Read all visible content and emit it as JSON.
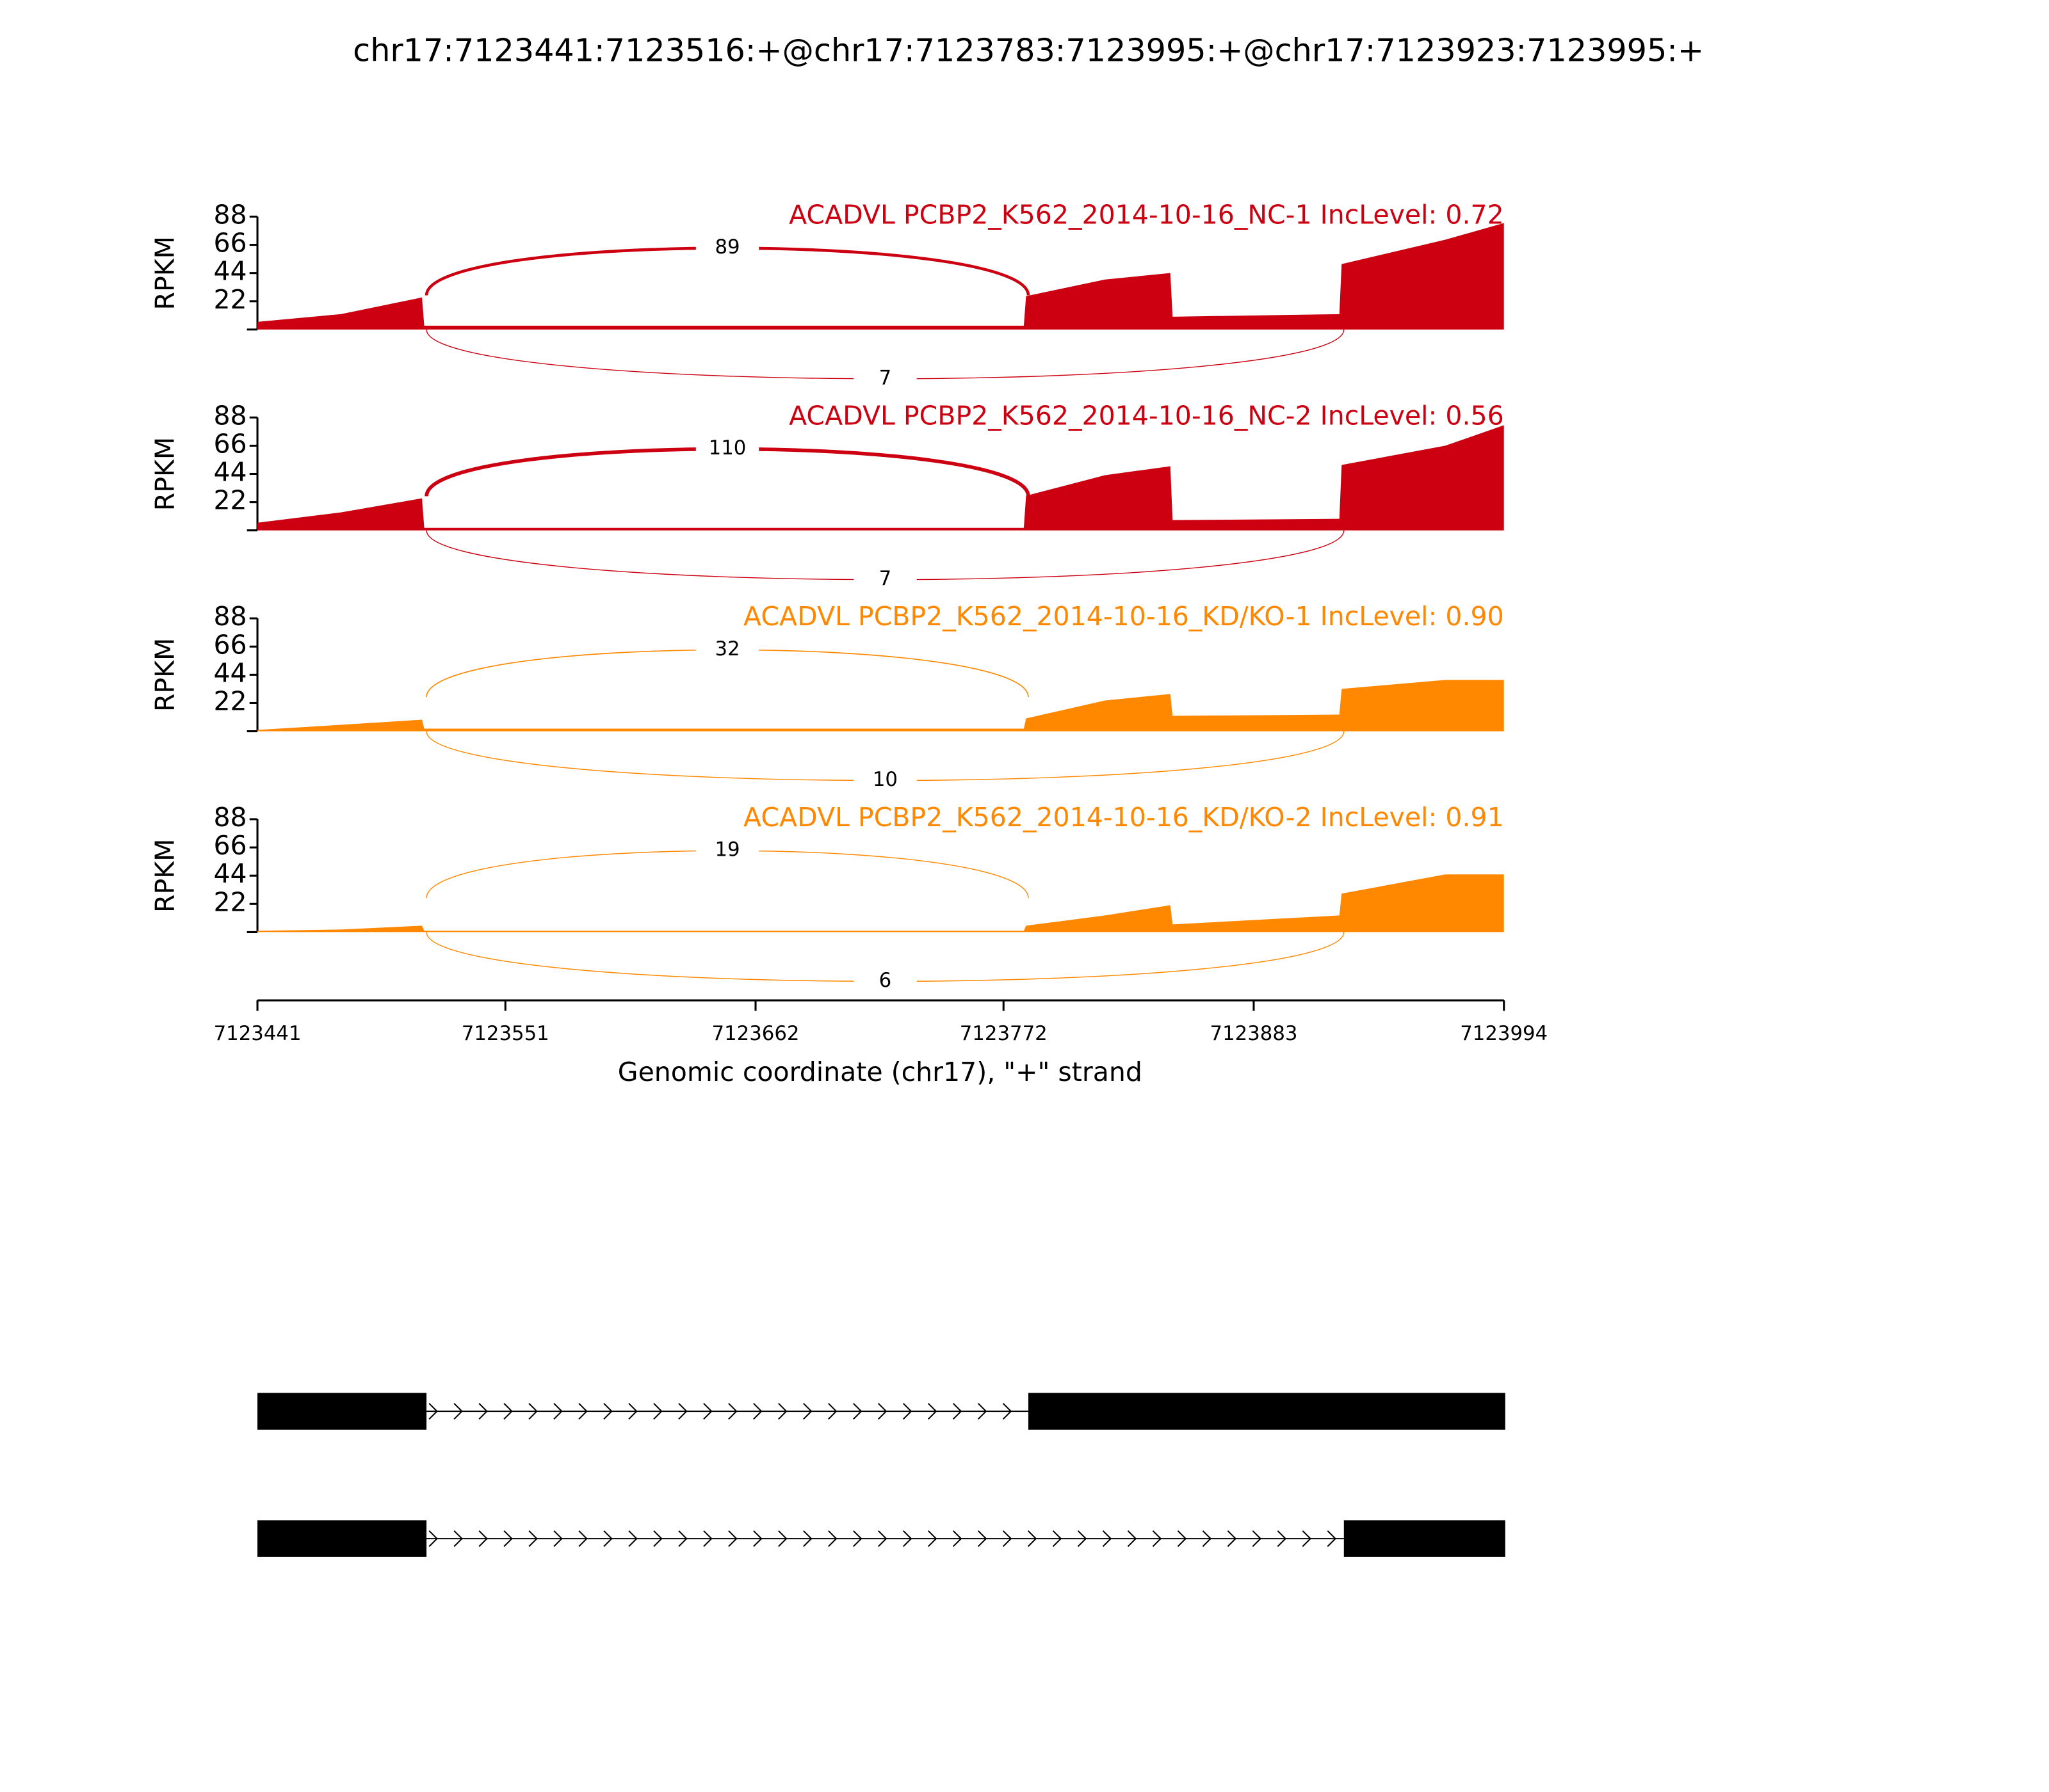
{
  "chart_data": {
    "type": "sashimi",
    "title": "chr17:7123441:7123516:+@chr17:7123783:7123995:+@chr17:7123923:7123995:+",
    "xlabel": "Genomic coordinate (chr17), \"+\" strand",
    "ylabel": "RPKM",
    "xlim": [
      7123441,
      7123994
    ],
    "xticks": [
      7123441,
      7123551,
      7123662,
      7123772,
      7123883,
      7123994
    ],
    "panels": [
      {
        "title": "ACADVL PCBP2_K562_2014-10-16_NC-1 IncLevel: 0.72",
        "color": "#cc0011",
        "ylim": [
          0,
          88
        ],
        "yticks": [
          22,
          44,
          66,
          88
        ],
        "x": [
          7123441,
          7123478,
          7123514,
          7123515,
          7123781,
          7123782,
          7123817,
          7123846,
          7123847,
          7123921,
          7123922,
          7123968,
          7123994
        ],
        "values": [
          6,
          12,
          25,
          3,
          3,
          26,
          39,
          44,
          10,
          12,
          51,
          70,
          83
        ],
        "junctions": [
          {
            "start": 7123516,
            "end": 7123783,
            "count": 89
          },
          {
            "start": 7123516,
            "end": 7123923,
            "count": 7
          }
        ]
      },
      {
        "title": "ACADVL PCBP2_K562_2014-10-16_NC-2 IncLevel: 0.56",
        "color": "#cc0011",
        "ylim": [
          0,
          88
        ],
        "yticks": [
          22,
          44,
          66,
          88
        ],
        "x": [
          7123441,
          7123478,
          7123514,
          7123515,
          7123781,
          7123782,
          7123817,
          7123846,
          7123847,
          7123921,
          7123922,
          7123968,
          7123994
        ],
        "values": [
          6,
          14,
          25,
          2,
          2,
          27,
          43,
          50,
          8,
          9,
          51,
          66,
          82
        ],
        "junctions": [
          {
            "start": 7123516,
            "end": 7123783,
            "count": 110
          },
          {
            "start": 7123516,
            "end": 7123923,
            "count": 7
          }
        ]
      },
      {
        "title": "ACADVL PCBP2_K562_2014-10-16_KD/KO-1 IncLevel: 0.90",
        "color": "#ff8800",
        "ylim": [
          0,
          88
        ],
        "yticks": [
          22,
          44,
          66,
          88
        ],
        "x": [
          7123441,
          7123478,
          7123514,
          7123515,
          7123781,
          7123782,
          7123817,
          7123846,
          7123847,
          7123921,
          7123922,
          7123968,
          7123994
        ],
        "values": [
          1,
          5,
          9,
          2,
          2,
          10,
          24,
          29,
          12,
          13,
          33,
          40,
          40
        ],
        "junctions": [
          {
            "start": 7123516,
            "end": 7123783,
            "count": 32
          },
          {
            "start": 7123516,
            "end": 7123923,
            "count": 10
          }
        ]
      },
      {
        "title": "ACADVL PCBP2_K562_2014-10-16_KD/KO-2 IncLevel: 0.91",
        "color": "#ff8800",
        "ylim": [
          0,
          88
        ],
        "yticks": [
          22,
          44,
          66,
          88
        ],
        "x": [
          7123441,
          7123478,
          7123514,
          7123515,
          7123781,
          7123782,
          7123817,
          7123846,
          7123847,
          7123921,
          7123922,
          7123968,
          7123994
        ],
        "values": [
          1,
          2,
          5,
          1,
          1,
          5,
          13,
          21,
          6,
          13,
          30,
          45,
          45
        ],
        "junctions": [
          {
            "start": 7123516,
            "end": 7123783,
            "count": 19
          },
          {
            "start": 7123516,
            "end": 7123923,
            "count": 6
          }
        ]
      }
    ],
    "transcripts": [
      {
        "exons": [
          [
            7123441,
            7123516
          ],
          [
            7123783,
            7123995
          ]
        ]
      },
      {
        "exons": [
          [
            7123441,
            7123516
          ],
          [
            7123923,
            7123995
          ]
        ]
      }
    ]
  }
}
